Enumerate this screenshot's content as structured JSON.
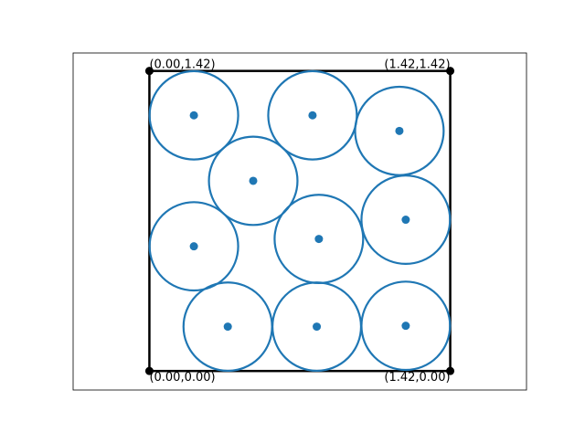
{
  "chart_data": {
    "type": "scatter",
    "title": "",
    "xlabel": "",
    "ylabel": "",
    "xlim": [
      -0.36,
      1.78
    ],
    "ylim": [
      -0.09,
      1.505
    ],
    "square": {
      "x": [
        0.0,
        1.42
      ],
      "y": [
        0.0,
        1.42
      ],
      "color": "#000000"
    },
    "circle_radius": 0.209,
    "marker_color": "#1f77b4",
    "points": [
      {
        "x": 0.21,
        "y": 1.21
      },
      {
        "x": 0.77,
        "y": 1.21
      },
      {
        "x": 1.18,
        "y": 1.136
      },
      {
        "x": 0.49,
        "y": 0.9
      },
      {
        "x": 0.21,
        "y": 0.59
      },
      {
        "x": 0.8,
        "y": 0.625
      },
      {
        "x": 1.21,
        "y": 0.716
      },
      {
        "x": 0.37,
        "y": 0.21
      },
      {
        "x": 0.79,
        "y": 0.21
      },
      {
        "x": 1.21,
        "y": 0.214
      }
    ],
    "corner_labels": [
      {
        "text": "(0.00,1.42)",
        "x": 0.0,
        "y": 1.42,
        "position": "top-left"
      },
      {
        "text": "(1.42,1.42)",
        "x": 1.42,
        "y": 1.42,
        "position": "top-right"
      },
      {
        "text": "(0.00,0.00)",
        "x": 0.0,
        "y": 0.0,
        "position": "bottom-left"
      },
      {
        "text": "(1.42,0.00)",
        "x": 1.42,
        "y": 0.0,
        "position": "bottom-right"
      }
    ]
  }
}
